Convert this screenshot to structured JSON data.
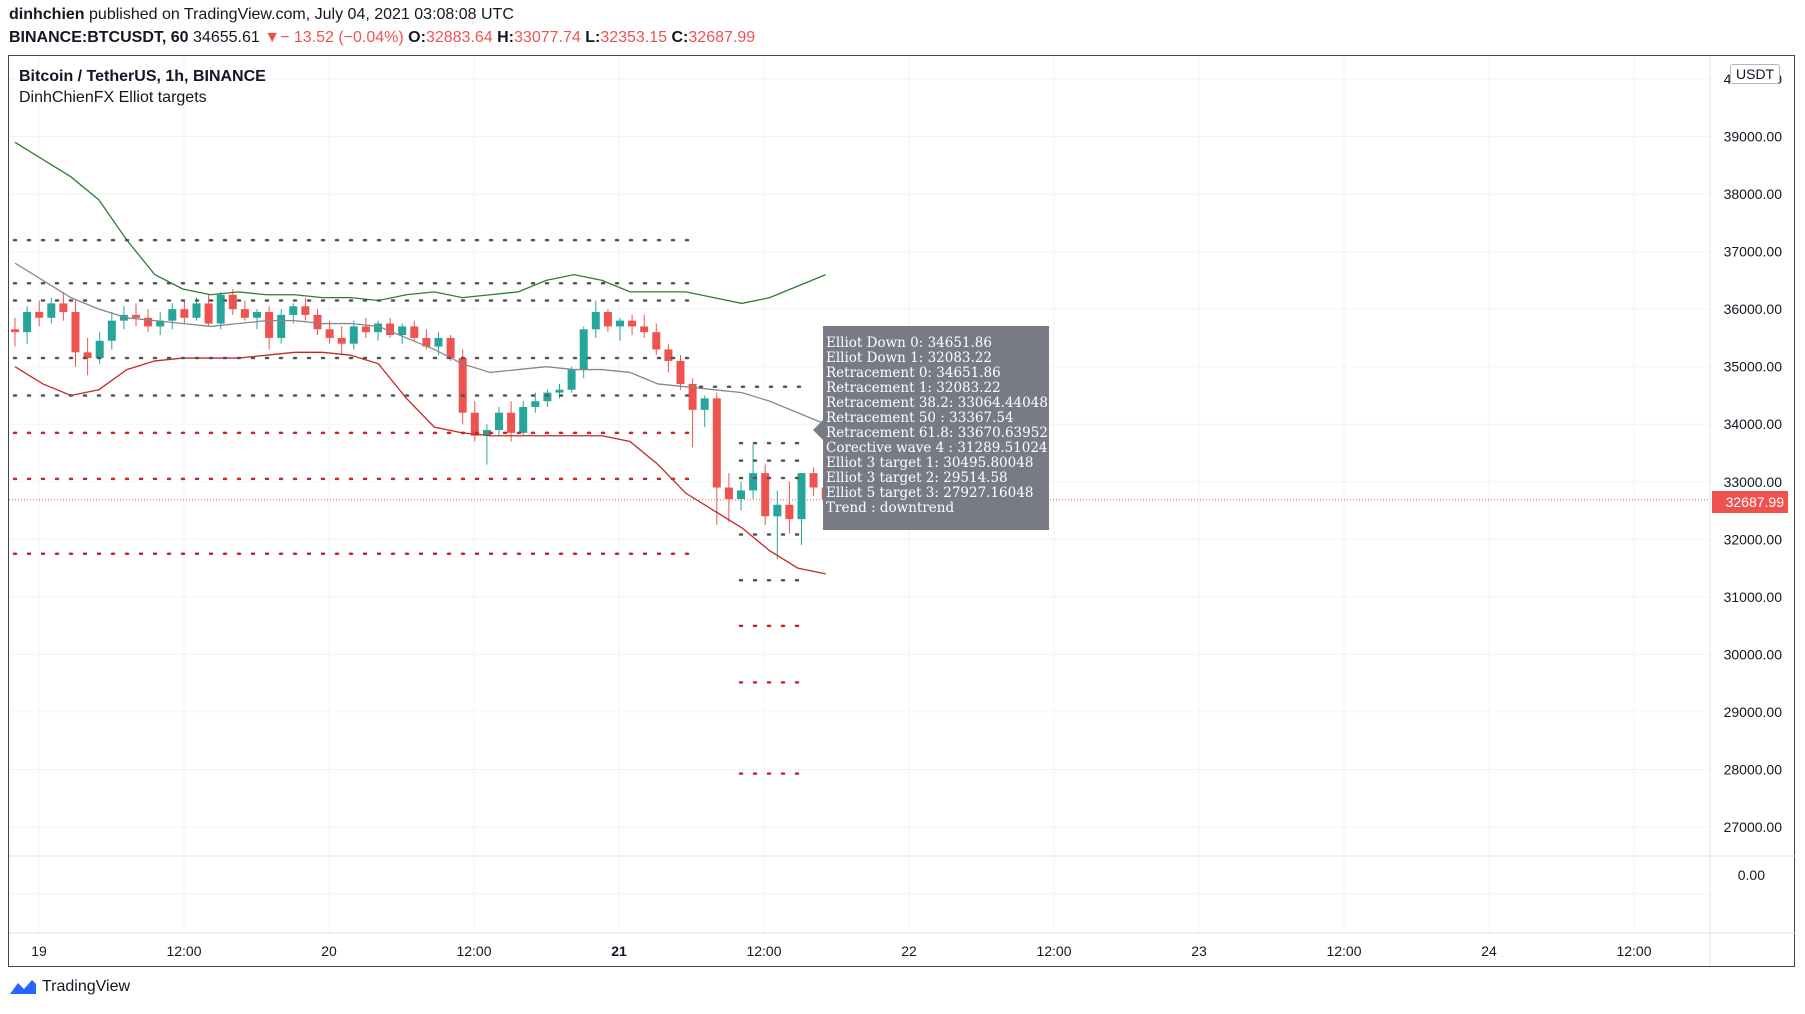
{
  "header": {
    "author": "dinhchien",
    "published_text": "published on TradingView.com, July 04, 2021 03:08:08 UTC",
    "symbol": "BINANCE:BTCUSDT, 60",
    "last": "34655.61",
    "change": "− 13.52 (−0.04%)",
    "change_arrow": "▼",
    "o_label": "O:",
    "o": "32883.64",
    "h_label": "H:",
    "h": "33077.74",
    "l_label": "L:",
    "l": "32353.15",
    "c_label": "C:",
    "c": "32687.99"
  },
  "legend": {
    "title": "Bitcoin / TetherUS, 1h, BINANCE",
    "indicator": "DinhChienFX Elliot targets"
  },
  "currency": "USDT",
  "price_tag": "32687.99",
  "tooltip": [
    "Elliot Down 0: 34651.86",
    "Elliot Down 1: 32083.22",
    "Retracement 0: 34651.86",
    "Retracement 1: 32083.22",
    "Retracement 38.2: 33064.44048",
    "Retracement 50  : 33367.54",
    "Retracement 61.8: 33670.63952",
    "Corective wave 4 : 31289.51024",
    "Elliot 3 target 1: 30495.80048",
    "Elliot 3 target 2: 29514.58",
    "Elliot 5 target 3: 27927.16048",
    "Trend : downtrend"
  ],
  "footer": {
    "brand": "TradingView"
  },
  "colors": {
    "up": "#26a69a",
    "down": "#ef5350",
    "green_line": "#2e7d32",
    "red_line": "#c62828",
    "gray_line": "#888888",
    "dot_gray": "#555555",
    "dot_red": "#c62828"
  },
  "chart_data": {
    "type": "candlestick",
    "y_ticks": [
      "40000.00",
      "39000.00",
      "38000.00",
      "37000.00",
      "36000.00",
      "35000.00",
      "34000.00",
      "33000.00",
      "32000.00",
      "31000.00",
      "30000.00",
      "29000.00",
      "28000.00",
      "27000.00"
    ],
    "y_ticks_lower": [
      "0.00"
    ],
    "ylim": [
      26500,
      40300
    ],
    "x_ticks": [
      "19",
      "12:00",
      "20",
      "12:00",
      "21",
      "12:00",
      "22",
      "12:00",
      "23",
      "12:00",
      "24",
      "12:00"
    ],
    "last_price": 32687.99,
    "candles": [
      [
        35650,
        35850,
        35350,
        35600
      ],
      [
        35600,
        36050,
        35400,
        35950
      ],
      [
        35950,
        36150,
        35700,
        35850
      ],
      [
        35850,
        36200,
        35750,
        36100
      ],
      [
        36100,
        36300,
        35800,
        35950
      ],
      [
        35950,
        36150,
        35000,
        35250
      ],
      [
        35250,
        35500,
        34850,
        35150
      ],
      [
        35150,
        35600,
        35050,
        35450
      ],
      [
        35450,
        35950,
        35300,
        35800
      ],
      [
        35800,
        36050,
        35650,
        35900
      ],
      [
        35900,
        36100,
        35700,
        35850
      ],
      [
        35850,
        36000,
        35600,
        35700
      ],
      [
        35700,
        35950,
        35550,
        35800
      ],
      [
        35800,
        36100,
        35650,
        36000
      ],
      [
        36000,
        36150,
        35750,
        35850
      ],
      [
        35850,
        36200,
        35800,
        36100
      ],
      [
        36100,
        36250,
        35700,
        35750
      ],
      [
        35750,
        36300,
        35650,
        36250
      ],
      [
        36250,
        36350,
        35900,
        36000
      ],
      [
        36000,
        36150,
        35800,
        35850
      ],
      [
        35850,
        36000,
        35650,
        35950
      ],
      [
        35950,
        36050,
        35300,
        35500
      ],
      [
        35500,
        36000,
        35400,
        35900
      ],
      [
        35900,
        36100,
        35750,
        36050
      ],
      [
        36050,
        36200,
        35800,
        35900
      ],
      [
        35900,
        36000,
        35550,
        35650
      ],
      [
        35650,
        35800,
        35400,
        35500
      ],
      [
        35500,
        35700,
        35200,
        35400
      ],
      [
        35400,
        35800,
        35300,
        35700
      ],
      [
        35700,
        35850,
        35500,
        35600
      ],
      [
        35600,
        35800,
        35450,
        35750
      ],
      [
        35750,
        35850,
        35500,
        35550
      ],
      [
        35550,
        35750,
        35400,
        35700
      ],
      [
        35700,
        35800,
        35450,
        35500
      ],
      [
        35500,
        35650,
        35300,
        35350
      ],
      [
        35350,
        35600,
        35200,
        35500
      ],
      [
        35500,
        35550,
        35100,
        35150
      ],
      [
        35150,
        35300,
        34000,
        34200
      ],
      [
        34200,
        34400,
        33700,
        33800
      ],
      [
        33800,
        34000,
        33300,
        33900
      ],
      [
        33900,
        34300,
        33800,
        34200
      ],
      [
        34200,
        34400,
        33700,
        33850
      ],
      [
        33850,
        34400,
        33800,
        34300
      ],
      [
        34300,
        34550,
        34200,
        34400
      ],
      [
        34400,
        34600,
        34300,
        34550
      ],
      [
        34550,
        34700,
        34450,
        34600
      ],
      [
        34600,
        35000,
        34550,
        34950
      ],
      [
        34950,
        35700,
        34800,
        35650
      ],
      [
        35650,
        36150,
        35500,
        35950
      ],
      [
        35950,
        36000,
        35600,
        35700
      ],
      [
        35700,
        35850,
        35450,
        35800
      ],
      [
        35800,
        35900,
        35550,
        35700
      ],
      [
        35700,
        35900,
        35500,
        35600
      ],
      [
        35600,
        35750,
        35200,
        35300
      ],
      [
        35300,
        35400,
        34900,
        35100
      ],
      [
        35100,
        35200,
        34600,
        34700
      ],
      [
        34700,
        34800,
        33600,
        34250
      ],
      [
        34250,
        34500,
        33950,
        34450
      ],
      [
        34450,
        34550,
        32250,
        32900
      ],
      [
        32900,
        33150,
        32300,
        32700
      ],
      [
        32700,
        33000,
        32500,
        32850
      ],
      [
        32850,
        33650,
        32700,
        33150
      ],
      [
        33150,
        33300,
        32250,
        32400
      ],
      [
        32400,
        32850,
        31650,
        32600
      ],
      [
        32600,
        33000,
        32100,
        32350
      ],
      [
        32350,
        33150,
        31900,
        33150
      ],
      [
        33150,
        33250,
        32750,
        32900
      ],
      [
        32900,
        33100,
        32350,
        32700
      ]
    ]
  }
}
